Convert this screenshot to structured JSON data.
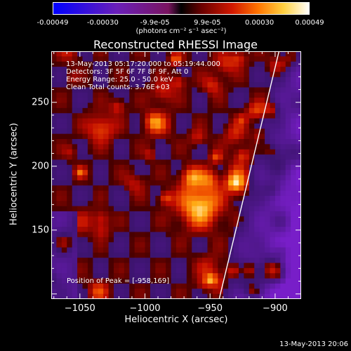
{
  "colorbar": {
    "ticks": [
      "-0.00049",
      "-0.00030",
      "-9.9e-05",
      "9.9e-05",
      "0.00030",
      "0.00049"
    ],
    "unit_label": "(photons cm⁻² s⁻¹ asec⁻²)",
    "range": [
      -0.00049,
      0.00049
    ]
  },
  "chart_data": {
    "type": "heatmap",
    "title": "Reconstructed RHESSI Image",
    "xlabel": "Heliocentric X (arcsec)",
    "ylabel": "Heliocentric Y (arcsec)",
    "xlim": [
      -1072,
      -880
    ],
    "ylim": [
      96,
      290
    ],
    "xticks": [
      -1050,
      -1000,
      -950,
      -900
    ],
    "yticks": [
      150,
      200,
      250
    ],
    "info_lines": [
      "13-May-2013 05:17:20.000 to 05:19:44.000",
      "Detectors: 3F 5F 6F 7F 8F 9F, Att 0",
      "Energy Range: 25.0 - 50.0 keV",
      "Clean    Total counts: 3.76E+03"
    ],
    "peak_text": "Position of Peak = [-958,169]",
    "peak": [
      -958,
      169
    ],
    "limb_line": [
      [
        -943,
        96
      ],
      [
        -897,
        290
      ]
    ],
    "colormap": "red-temperature with blue-purple negatives"
  },
  "footer": {
    "timestamp": "13-May-2013 20:06"
  },
  "colors": {
    "background": "#000000",
    "text": "#ffffff",
    "limb": "#ffffff"
  }
}
